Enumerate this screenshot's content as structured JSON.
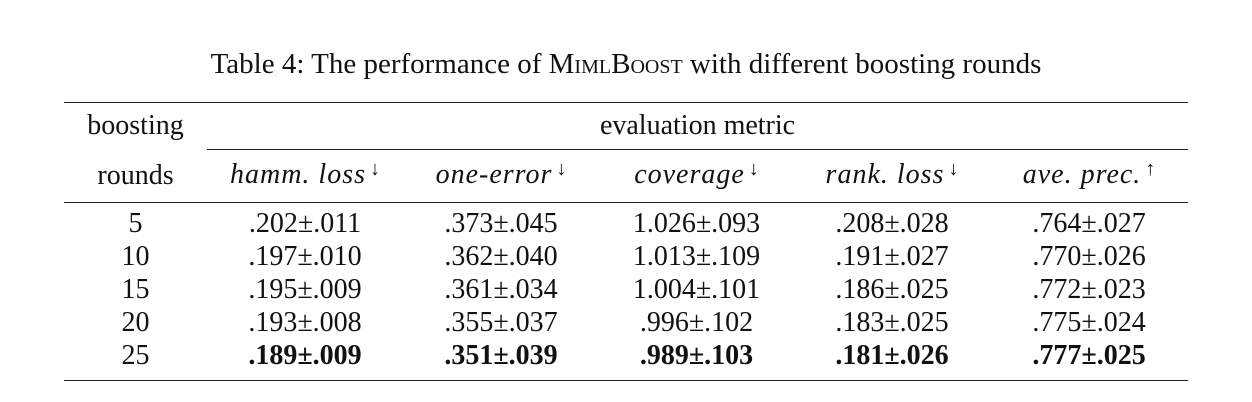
{
  "caption": {
    "prefix": "Table 4: The performance of ",
    "method_initial_1": "M",
    "method_rest_1": "iml",
    "method_initial_2": "B",
    "method_rest_2": "oost",
    "suffix": " with different boosting rounds"
  },
  "table": {
    "header_col0_line1": "boosting",
    "header_col0_line2": "rounds",
    "header_group": "evaluation metric",
    "metrics": [
      {
        "label": "hamm. loss",
        "arrow": "↓"
      },
      {
        "label": "one-error",
        "arrow": "↓"
      },
      {
        "label": "coverage",
        "arrow": "↓"
      },
      {
        "label": "rank. loss",
        "arrow": "↓"
      },
      {
        "label": "ave. prec.",
        "arrow": "↑"
      }
    ],
    "rows": [
      {
        "rounds": "5",
        "values": [
          ".202±.011",
          ".373±.045",
          "1.026±.093",
          ".208±.028",
          ".764±.027"
        ]
      },
      {
        "rounds": "10",
        "values": [
          ".197±.010",
          ".362±.040",
          "1.013±.109",
          ".191±.027",
          ".770±.026"
        ]
      },
      {
        "rounds": "15",
        "values": [
          ".195±.009",
          ".361±.034",
          "1.004±.101",
          ".186±.025",
          ".772±.023"
        ]
      },
      {
        "rounds": "20",
        "values": [
          ".193±.008",
          ".355±.037",
          ".996±.102",
          ".183±.025",
          ".775±.024"
        ]
      },
      {
        "rounds": "25",
        "values": [
          ".189±.009",
          ".351±.039",
          ".989±.103",
          ".181±.026",
          ".777±.025"
        ]
      }
    ]
  }
}
